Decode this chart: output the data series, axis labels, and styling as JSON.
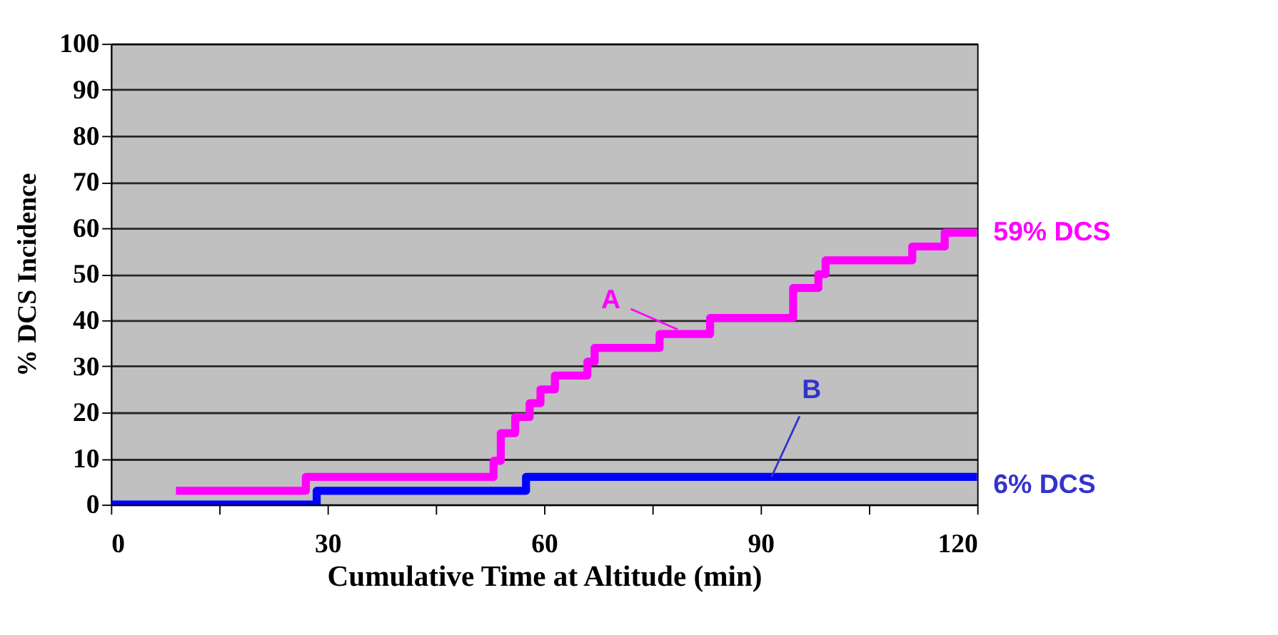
{
  "chart_data": {
    "type": "step",
    "xlabel": "Cumulative Time at Altitude (min)",
    "ylabel": "% DCS Incidence",
    "xlim": [
      0,
      120
    ],
    "ylim": [
      0,
      100
    ],
    "xticks": [
      0,
      {
        "value": 15,
        "label": null
      },
      30,
      {
        "value": 45,
        "label": null
      },
      60,
      {
        "value": 75,
        "label": null
      },
      90,
      {
        "value": 105,
        "label": null
      },
      120
    ],
    "yticks": [
      0,
      10,
      20,
      30,
      40,
      50,
      60,
      70,
      80,
      90,
      100
    ],
    "grid": "y",
    "line_style": "solid",
    "series": [
      {
        "color": "#ff00ff",
        "x": [
          9,
          27,
          53,
          54,
          56,
          58,
          59.5,
          61.5,
          66,
          67,
          76,
          83,
          94.5,
          98,
          99,
          111,
          115.5,
          120
        ],
        "values": [
          3,
          6,
          9.5,
          15.5,
          19,
          22,
          25,
          28,
          31,
          34,
          37,
          40.5,
          47,
          50,
          53,
          56,
          59,
          59
        ]
      },
      {
        "color": "#0000ff",
        "x": [
          0,
          28.5,
          57.5,
          120
        ],
        "values": [
          0,
          3,
          6,
          6
        ]
      }
    ],
    "annotations": [
      {
        "text": "A",
        "x": 78.5,
        "y": 38
      },
      {
        "text": "B",
        "x": 91.5,
        "y": 6
      },
      {
        "text": "59% DCS",
        "x": 120,
        "y": 59
      },
      {
        "text": "6% DCS",
        "x": 120,
        "y": 6
      }
    ]
  }
}
